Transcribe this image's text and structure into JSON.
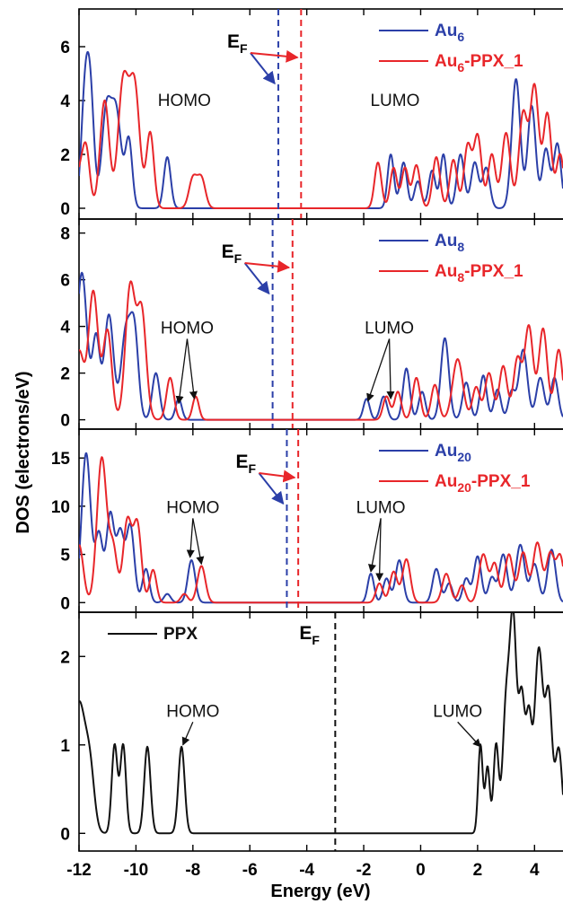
{
  "chart_data": {
    "type": "line",
    "xlabel": "Energy (eV)",
    "ylabel": "DOS (electrons/eV)",
    "xlim": [
      -12,
      5
    ],
    "xticks": [
      -12,
      -10,
      -8,
      -6,
      -4,
      -2,
      0,
      2,
      4
    ],
    "colors": {
      "cluster": "#2b3fa8",
      "complex": "#e8262a",
      "ppx": "#111111"
    },
    "panels": [
      {
        "id": "au6",
        "ylim": [
          -0.4,
          7.4
        ],
        "yticks": [
          0,
          2,
          4,
          6
        ],
        "fermi": [
          {
            "x": -5.0,
            "series": 0
          },
          {
            "x": -4.2,
            "series": 1
          }
        ],
        "fermi_label": {
          "base": "E",
          "sub": "F"
        },
        "legend": [
          {
            "base": "Au",
            "sub": "6",
            "suffix": ""
          },
          {
            "base": "Au",
            "sub": "6",
            "suffix": "-PPX_1"
          }
        ],
        "annotations": [
          {
            "text": "HOMO",
            "x": -8.3,
            "y": 3.8
          },
          {
            "text": "LUMO",
            "x": -0.9,
            "y": 3.8
          }
        ],
        "series": [
          {
            "peaks": [
              [
                -11.8,
                3.8,
                0.13
              ],
              [
                -11.6,
                4.0,
                0.13
              ],
              [
                -11.05,
                3.4,
                0.16
              ],
              [
                -10.7,
                3.6,
                0.18
              ],
              [
                -10.25,
                2.5,
                0.12
              ],
              [
                -8.9,
                1.9,
                0.12
              ],
              [
                -1.05,
                2.0,
                0.11
              ],
              [
                -0.6,
                1.7,
                0.12
              ],
              [
                -0.1,
                1.0,
                0.12
              ],
              [
                0.4,
                1.4,
                0.12
              ],
              [
                0.8,
                2.0,
                0.11
              ],
              [
                1.4,
                2.0,
                0.13
              ],
              [
                1.9,
                1.7,
                0.13
              ],
              [
                2.3,
                1.5,
                0.13
              ],
              [
                3.35,
                4.8,
                0.15
              ],
              [
                3.9,
                3.8,
                0.14
              ],
              [
                4.4,
                2.2,
                0.13
              ],
              [
                4.8,
                2.4,
                0.13
              ]
            ]
          },
          {
            "peaks": [
              [
                -12.0,
                1.2,
                0.15
              ],
              [
                -11.75,
                2.1,
                0.13
              ],
              [
                -11.1,
                4.0,
                0.16
              ],
              [
                -10.45,
                4.6,
                0.18
              ],
              [
                -10.05,
                4.5,
                0.18
              ],
              [
                -9.5,
                2.8,
                0.13
              ],
              [
                -8.0,
                1.1,
                0.14
              ],
              [
                -7.7,
                1.1,
                0.14
              ],
              [
                -1.5,
                1.7,
                0.12
              ],
              [
                -0.95,
                1.5,
                0.12
              ],
              [
                -0.55,
                1.5,
                0.12
              ],
              [
                -0.15,
                1.6,
                0.13
              ],
              [
                0.55,
                1.9,
                0.13
              ],
              [
                1.15,
                1.8,
                0.13
              ],
              [
                1.65,
                2.3,
                0.13
              ],
              [
                2.0,
                2.7,
                0.14
              ],
              [
                2.5,
                2.0,
                0.13
              ],
              [
                3.0,
                2.8,
                0.15
              ],
              [
                3.6,
                3.5,
                0.15
              ],
              [
                4.0,
                4.5,
                0.15
              ],
              [
                4.45,
                3.5,
                0.14
              ],
              [
                4.9,
                2.0,
                0.13
              ]
            ]
          }
        ]
      },
      {
        "id": "au8",
        "ylim": [
          -0.4,
          8.6
        ],
        "yticks": [
          0,
          2,
          4,
          6,
          8
        ],
        "fermi": [
          {
            "x": -5.2,
            "series": 0
          },
          {
            "x": -4.5,
            "series": 1
          }
        ],
        "fermi_label": {
          "base": "E",
          "sub": "F"
        },
        "legend": [
          {
            "base": "Au",
            "sub": "8",
            "suffix": ""
          },
          {
            "base": "Au",
            "sub": "8",
            "suffix": "-PPX_1"
          }
        ],
        "annotations": [
          {
            "text": "HOMO",
            "x": -8.2,
            "y": 3.7,
            "arrows": [
              [
                -8.5,
                0.7
              ],
              [
                -7.95,
                0.9
              ]
            ]
          },
          {
            "text": "LUMO",
            "x": -1.1,
            "y": 3.7,
            "arrows": [
              [
                -1.85,
                0.8
              ],
              [
                -1.05,
                0.9
              ]
            ]
          }
        ],
        "series": [
          {
            "peaks": [
              [
                -11.9,
                6.3,
                0.18
              ],
              [
                -11.4,
                3.5,
                0.13
              ],
              [
                -10.95,
                4.5,
                0.16
              ],
              [
                -10.35,
                3.8,
                0.17
              ],
              [
                -10.05,
                3.5,
                0.14
              ],
              [
                -9.3,
                2.0,
                0.13
              ],
              [
                -8.5,
                0.9,
                0.11
              ],
              [
                -1.9,
                0.9,
                0.11
              ],
              [
                -1.3,
                1.0,
                0.12
              ],
              [
                -0.5,
                2.2,
                0.12
              ],
              [
                0.05,
                1.2,
                0.12
              ],
              [
                0.85,
                3.5,
                0.14
              ],
              [
                1.6,
                1.6,
                0.13
              ],
              [
                2.2,
                1.9,
                0.12
              ],
              [
                2.7,
                1.3,
                0.12
              ],
              [
                3.2,
                1.2,
                0.12
              ],
              [
                3.6,
                3.0,
                0.15
              ],
              [
                4.2,
                1.8,
                0.14
              ],
              [
                4.7,
                1.8,
                0.13
              ]
            ]
          },
          {
            "peaks": [
              [
                -12.0,
                2.9,
                0.16
              ],
              [
                -11.5,
                5.5,
                0.17
              ],
              [
                -11.0,
                3.8,
                0.15
              ],
              [
                -10.2,
                5.7,
                0.17
              ],
              [
                -9.8,
                4.6,
                0.16
              ],
              [
                -8.8,
                1.8,
                0.13
              ],
              [
                -7.9,
                1.0,
                0.11
              ],
              [
                -1.2,
                1.0,
                0.12
              ],
              [
                -0.8,
                1.2,
                0.12
              ],
              [
                -0.15,
                1.8,
                0.13
              ],
              [
                0.5,
                1.5,
                0.13
              ],
              [
                1.3,
                2.6,
                0.18
              ],
              [
                1.95,
                1.4,
                0.13
              ],
              [
                2.4,
                2.0,
                0.14
              ],
              [
                2.9,
                2.3,
                0.14
              ],
              [
                3.4,
                2.6,
                0.14
              ],
              [
                3.8,
                4.0,
                0.15
              ],
              [
                4.3,
                3.9,
                0.15
              ],
              [
                4.85,
                3.0,
                0.14
              ]
            ]
          }
        ]
      },
      {
        "id": "au20",
        "ylim": [
          -1.0,
          18.0
        ],
        "yticks": [
          0,
          5,
          10,
          15
        ],
        "fermi": [
          {
            "x": -4.7,
            "series": 0
          },
          {
            "x": -4.3,
            "series": 1
          }
        ],
        "fermi_label": {
          "base": "E",
          "sub": "F"
        },
        "legend": [
          {
            "base": "Au",
            "sub": "20",
            "suffix": ""
          },
          {
            "base": "Au",
            "sub": "20",
            "suffix": "-PPX_1"
          }
        ],
        "annotations": [
          {
            "text": "HOMO",
            "x": -8.0,
            "y": 9.3,
            "arrows": [
              [
                -8.1,
                4.7
              ],
              [
                -7.7,
                4.0
              ]
            ]
          },
          {
            "text": "LUMO",
            "x": -1.4,
            "y": 9.3,
            "arrows": [
              [
                -1.75,
                3.2
              ],
              [
                -1.45,
                2.3
              ]
            ]
          }
        ],
        "series": [
          {
            "peaks": [
              [
                -11.75,
                15.5,
                0.16
              ],
              [
                -11.3,
                7.0,
                0.13
              ],
              [
                -10.9,
                9.2,
                0.14
              ],
              [
                -10.55,
                7.0,
                0.13
              ],
              [
                -10.2,
                8.0,
                0.14
              ],
              [
                -9.65,
                3.5,
                0.12
              ],
              [
                -8.9,
                0.9,
                0.12
              ],
              [
                -8.05,
                4.4,
                0.13
              ],
              [
                -1.75,
                3.0,
                0.11
              ],
              [
                -1.2,
                2.5,
                0.12
              ],
              [
                -0.75,
                4.4,
                0.13
              ],
              [
                0.55,
                3.5,
                0.13
              ],
              [
                1.0,
                2.0,
                0.12
              ],
              [
                1.6,
                2.5,
                0.12
              ],
              [
                2.0,
                4.8,
                0.13
              ],
              [
                2.5,
                2.6,
                0.12
              ],
              [
                2.9,
                5.0,
                0.14
              ],
              [
                3.5,
                6.0,
                0.15
              ],
              [
                4.0,
                4.0,
                0.14
              ],
              [
                4.6,
                5.5,
                0.14
              ]
            ]
          },
          {
            "peaks": [
              [
                -12.0,
                6.0,
                0.15
              ],
              [
                -11.2,
                15.0,
                0.17
              ],
              [
                -10.8,
                5.5,
                0.14
              ],
              [
                -10.3,
                8.5,
                0.15
              ],
              [
                -9.95,
                8.0,
                0.14
              ],
              [
                -9.4,
                3.4,
                0.12
              ],
              [
                -8.3,
                0.9,
                0.12
              ],
              [
                -7.7,
                3.8,
                0.14
              ],
              [
                -1.45,
                2.0,
                0.12
              ],
              [
                -0.95,
                3.2,
                0.13
              ],
              [
                -0.5,
                4.5,
                0.14
              ],
              [
                0.9,
                3.0,
                0.14
              ],
              [
                1.45,
                1.8,
                0.12
              ],
              [
                2.2,
                5.0,
                0.15
              ],
              [
                2.6,
                4.0,
                0.13
              ],
              [
                3.1,
                5.0,
                0.14
              ],
              [
                3.6,
                5.2,
                0.15
              ],
              [
                4.1,
                6.2,
                0.15
              ],
              [
                4.55,
                5.0,
                0.14
              ],
              [
                4.9,
                4.8,
                0.14
              ]
            ]
          }
        ]
      },
      {
        "id": "ppx",
        "ylim": [
          -0.2,
          2.5
        ],
        "yticks": [
          0,
          1,
          2
        ],
        "fermi": [
          {
            "x": -3.0,
            "series": 0
          }
        ],
        "fermi_label": {
          "base": "E",
          "sub": "F"
        },
        "legend": [
          {
            "base": "PPX",
            "sub": "",
            "suffix": ""
          }
        ],
        "annotations": [
          {
            "text": "HOMO",
            "x": -8.0,
            "y": 1.32,
            "arrows": [
              [
                -8.35,
                1.0
              ]
            ]
          },
          {
            "text": "LUMO",
            "x": 1.3,
            "y": 1.32,
            "arrows": [
              [
                2.1,
                0.98
              ]
            ]
          }
        ],
        "series": [
          {
            "peaks": [
              [
                -12.0,
                1.48,
                0.25
              ],
              [
                -11.6,
                0.5,
                0.15
              ],
              [
                -10.75,
                1.0,
                0.1
              ],
              [
                -10.45,
                1.0,
                0.1
              ],
              [
                -9.6,
                0.98,
                0.11
              ],
              [
                -8.4,
                0.98,
                0.11
              ],
              [
                2.1,
                1.0,
                0.08
              ],
              [
                2.35,
                0.75,
                0.08
              ],
              [
                2.65,
                1.0,
                0.09
              ],
              [
                3.0,
                1.4,
                0.12
              ],
              [
                3.25,
                2.35,
                0.12
              ],
              [
                3.55,
                1.5,
                0.11
              ],
              [
                3.8,
                1.2,
                0.1
              ],
              [
                4.15,
                2.08,
                0.15
              ],
              [
                4.5,
                1.5,
                0.12
              ],
              [
                4.85,
                0.95,
                0.12
              ]
            ]
          }
        ]
      }
    ]
  }
}
